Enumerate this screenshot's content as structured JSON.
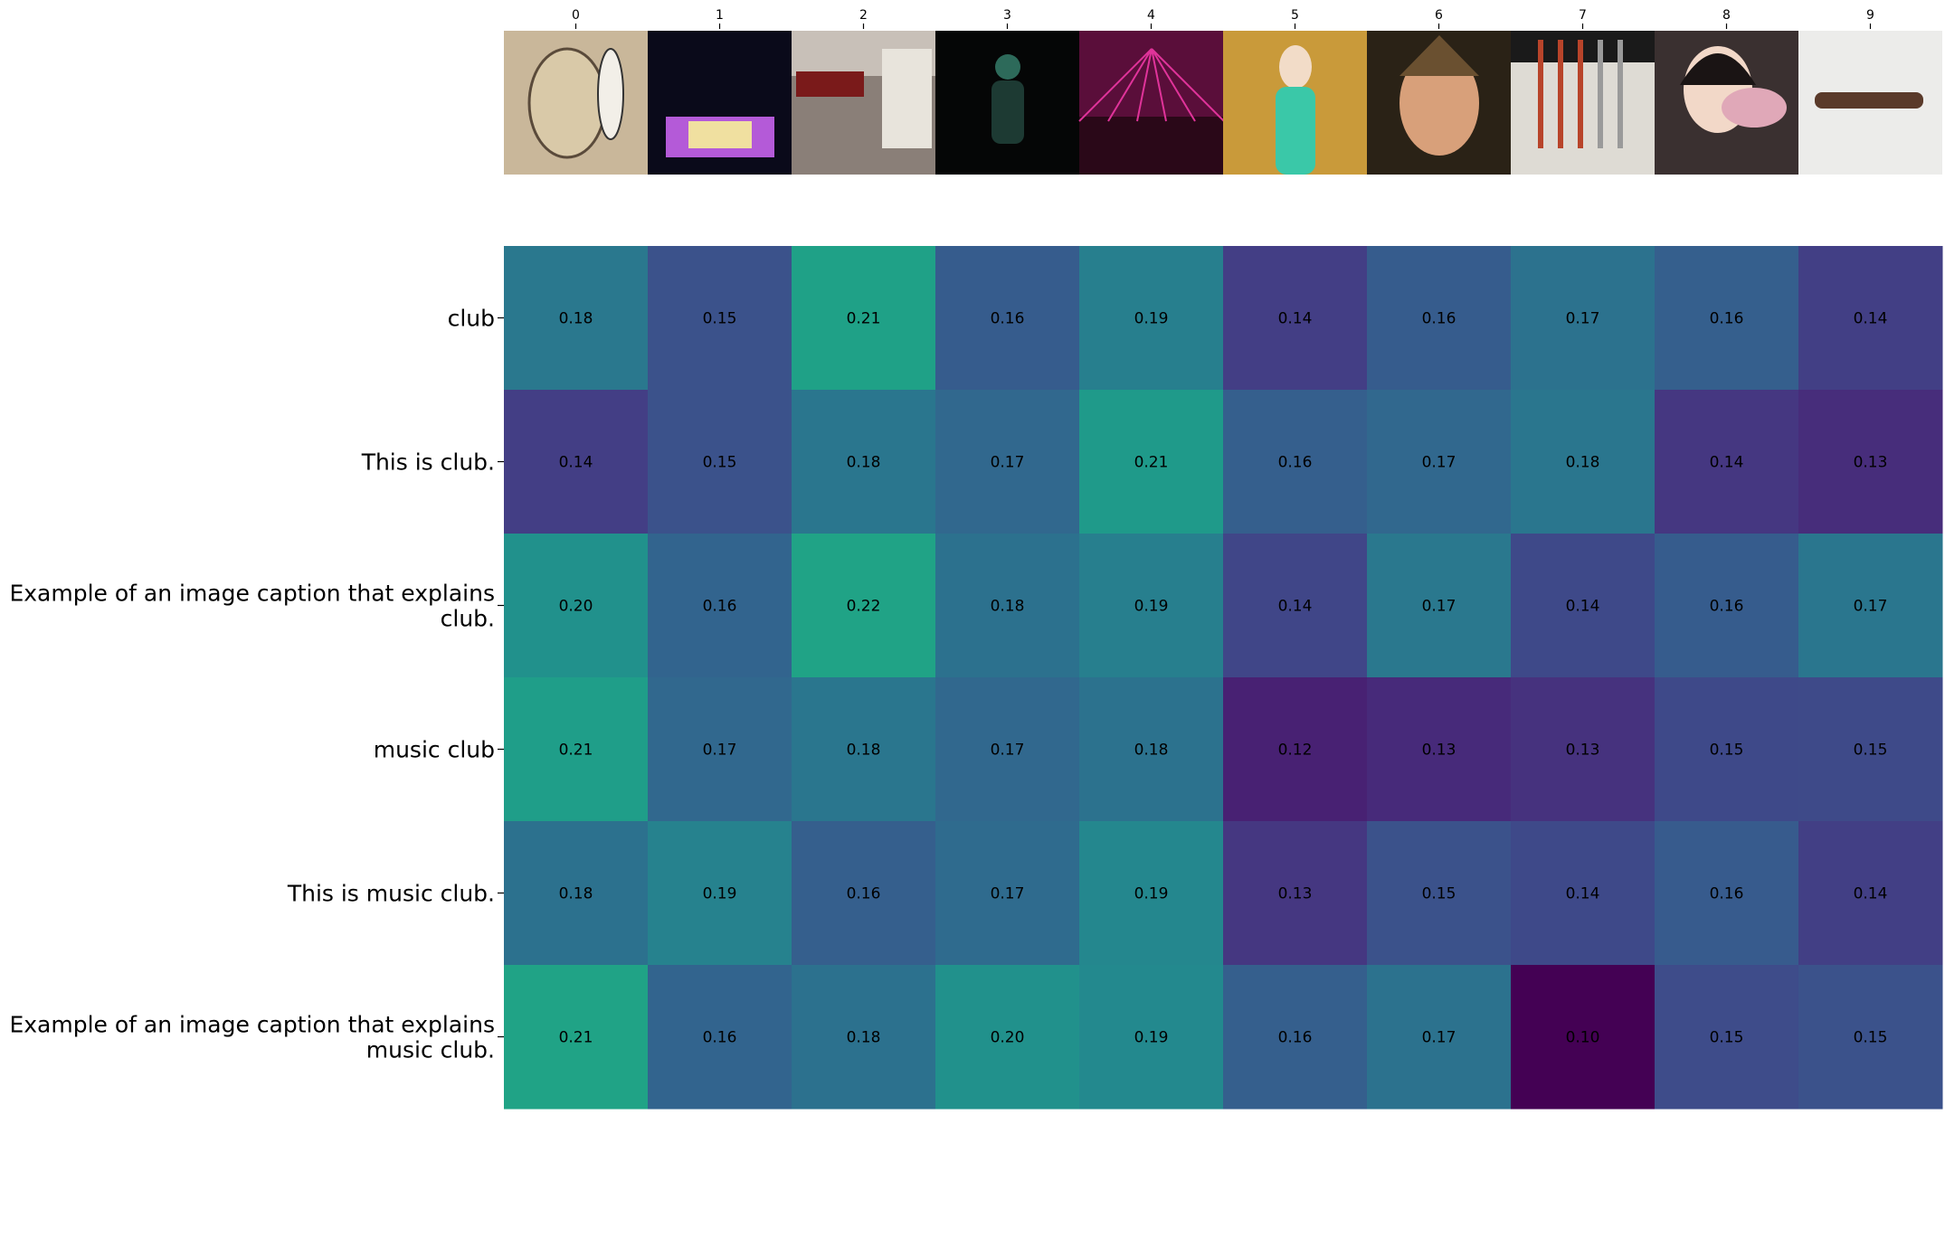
{
  "chart_data": {
    "type": "heatmap",
    "title": "",
    "xlabel": "",
    "ylabel": "",
    "colormap": "viridis",
    "value_range": [
      0.1,
      0.22
    ],
    "x_tick_labels": [
      "0",
      "1",
      "2",
      "3",
      "4",
      "5",
      "6",
      "7",
      "8",
      "9"
    ],
    "thumbnails": [
      {
        "name": "drum-photo",
        "bg": "#c9b79a",
        "accent": "#5a4a3a"
      },
      {
        "name": "concert-stage-photo",
        "bg": "#0a0a1a",
        "accent": "#b45ad8"
      },
      {
        "name": "storefront-club-photo",
        "bg": "#8a7f78",
        "accent": "#7a1a1a"
      },
      {
        "name": "singer-green-light-photo",
        "bg": "#050606",
        "accent": "#2d6a5a"
      },
      {
        "name": "nightclub-lasers-photo",
        "bg": "#5a0e3a",
        "accent": "#e0339a"
      },
      {
        "name": "mannequin-lights-photo",
        "bg": "#c99a3a",
        "accent": "#3ac8a8"
      },
      {
        "name": "man-portrait-photo",
        "bg": "#2a2216",
        "accent": "#d8a07a"
      },
      {
        "name": "golf-clubs-photo",
        "bg": "#dedbd4",
        "accent": "#b8442a"
      },
      {
        "name": "girl-with-sign-photo",
        "bg": "#3a3030",
        "accent": "#e0a8b8"
      },
      {
        "name": "cylinder-object-photo",
        "bg": "#ececea",
        "accent": "#5a3a2a"
      }
    ],
    "rows": [
      {
        "label": [
          "club"
        ],
        "values": [
          0.18,
          0.15,
          0.21,
          0.16,
          0.19,
          0.14,
          0.16,
          0.17,
          0.16,
          0.14
        ],
        "colors": [
          "#2a788e",
          "#3b528b",
          "#1fa187",
          "#365c8d",
          "#277f8e",
          "#433e85",
          "#365c8d",
          "#2c728e",
          "#355f8d",
          "#423f85"
        ]
      },
      {
        "label": [
          "This is club."
        ],
        "values": [
          0.14,
          0.15,
          0.18,
          0.17,
          0.21,
          0.16,
          0.17,
          0.18,
          0.14,
          0.13
        ],
        "colors": [
          "#433e85",
          "#3b528b",
          "#2a768e",
          "#31688e",
          "#1f9a8a",
          "#355f8d",
          "#31688e",
          "#2a768e",
          "#453781",
          "#472d7b"
        ]
      },
      {
        "label": [
          "Example of an image caption that explains",
          "club."
        ],
        "values": [
          0.2,
          0.16,
          0.22,
          0.18,
          0.19,
          0.14,
          0.17,
          0.14,
          0.16,
          0.17
        ],
        "colors": [
          "#21918c",
          "#32648e",
          "#20a386",
          "#2c718e",
          "#277f8e",
          "#404688",
          "#2a788e",
          "#3e4989",
          "#365c8d",
          "#2a768e"
        ]
      },
      {
        "label": [
          "music club"
        ],
        "values": [
          0.21,
          0.17,
          0.18,
          0.17,
          0.18,
          0.12,
          0.13,
          0.13,
          0.15,
          0.15
        ],
        "colors": [
          "#1f9e89",
          "#31688e",
          "#2a768e",
          "#31688e",
          "#2c728e",
          "#482173",
          "#472a7a",
          "#46327e",
          "#3e4989",
          "#3e4a89"
        ]
      },
      {
        "label": [
          "This is music club."
        ],
        "values": [
          0.18,
          0.19,
          0.16,
          0.17,
          0.19,
          0.13,
          0.15,
          0.14,
          0.16,
          0.14
        ],
        "colors": [
          "#2c718e",
          "#26828e",
          "#355f8d",
          "#2f6b8e",
          "#24878e",
          "#453781",
          "#3b528b",
          "#3e4989",
          "#375b8d",
          "#423f85"
        ]
      },
      {
        "label": [
          "Example of an image caption that explains",
          "music club."
        ],
        "values": [
          0.21,
          0.16,
          0.18,
          0.2,
          0.19,
          0.16,
          0.17,
          0.1,
          0.15,
          0.15
        ],
        "colors": [
          "#20a386",
          "#32648e",
          "#2c718e",
          "#21918c",
          "#23898e",
          "#355f8d",
          "#2c728e",
          "#440154",
          "#3e4c8a",
          "#3b528b"
        ]
      }
    ]
  }
}
